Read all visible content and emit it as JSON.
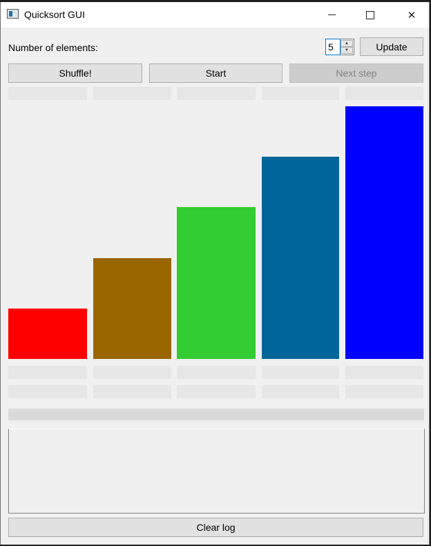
{
  "window": {
    "title": "Quicksort GUI",
    "controls": {
      "minimize": "minimize-icon",
      "maximize": "maximize-icon",
      "close": "close-icon"
    }
  },
  "top_row": {
    "elements_label": "Number of elements:",
    "elements_value": "5",
    "update_label": "Update"
  },
  "actions": {
    "shuffle_label": "Shuffle!",
    "start_label": "Start",
    "next_step_label": "Next step",
    "next_step_enabled": false
  },
  "bars": [
    {
      "value": 1,
      "color": "#ff0000"
    },
    {
      "value": 2,
      "color": "#996600"
    },
    {
      "value": 3,
      "color": "#33cc33"
    },
    {
      "value": 4,
      "color": "#006699"
    },
    {
      "value": 5,
      "color": "#0000ff"
    }
  ],
  "progress": {
    "value": 0
  },
  "log": {
    "text": ""
  },
  "footer": {
    "clear_log_label": "Clear log"
  }
}
